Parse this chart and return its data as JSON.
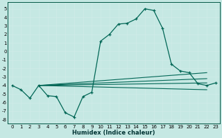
{
  "title": "",
  "xlabel": "Humidex (Indice chaleur)",
  "background_color": "#c5e8e3",
  "grid_color": "#aed4ce",
  "line_color": "#006655",
  "xlim": [
    -0.5,
    23.5
  ],
  "ylim": [
    -8.5,
    5.8
  ],
  "xticks": [
    0,
    1,
    2,
    3,
    4,
    5,
    6,
    7,
    8,
    9,
    10,
    11,
    12,
    13,
    14,
    15,
    16,
    17,
    18,
    19,
    20,
    21,
    22,
    23
  ],
  "yticks": [
    5,
    4,
    3,
    2,
    1,
    0,
    -1,
    -2,
    -3,
    -4,
    -5,
    -6,
    -7,
    -8
  ],
  "main_x": [
    0,
    1,
    2,
    3,
    4,
    5,
    6,
    7,
    8,
    9,
    10,
    11,
    12,
    13,
    14,
    15,
    16,
    17,
    18,
    19,
    20,
    21,
    22,
    23
  ],
  "main_y": [
    -4.0,
    -4.5,
    -5.5,
    -4.0,
    -5.2,
    -5.3,
    -7.2,
    -7.7,
    -5.3,
    -4.8,
    1.2,
    2.0,
    3.2,
    3.3,
    3.8,
    5.0,
    4.8,
    2.7,
    -1.5,
    -2.3,
    -2.5,
    -3.8,
    -4.0,
    -3.7
  ],
  "line1_x": [
    3,
    22
  ],
  "line1_y": [
    -4.0,
    -3.7
  ],
  "line2_x": [
    3,
    22
  ],
  "line2_y": [
    -4.0,
    -3.2
  ],
  "line3_x": [
    3,
    22
  ],
  "line3_y": [
    -4.0,
    -2.5
  ],
  "line4_x": [
    3,
    22
  ],
  "line4_y": [
    -4.0,
    -4.5
  ]
}
